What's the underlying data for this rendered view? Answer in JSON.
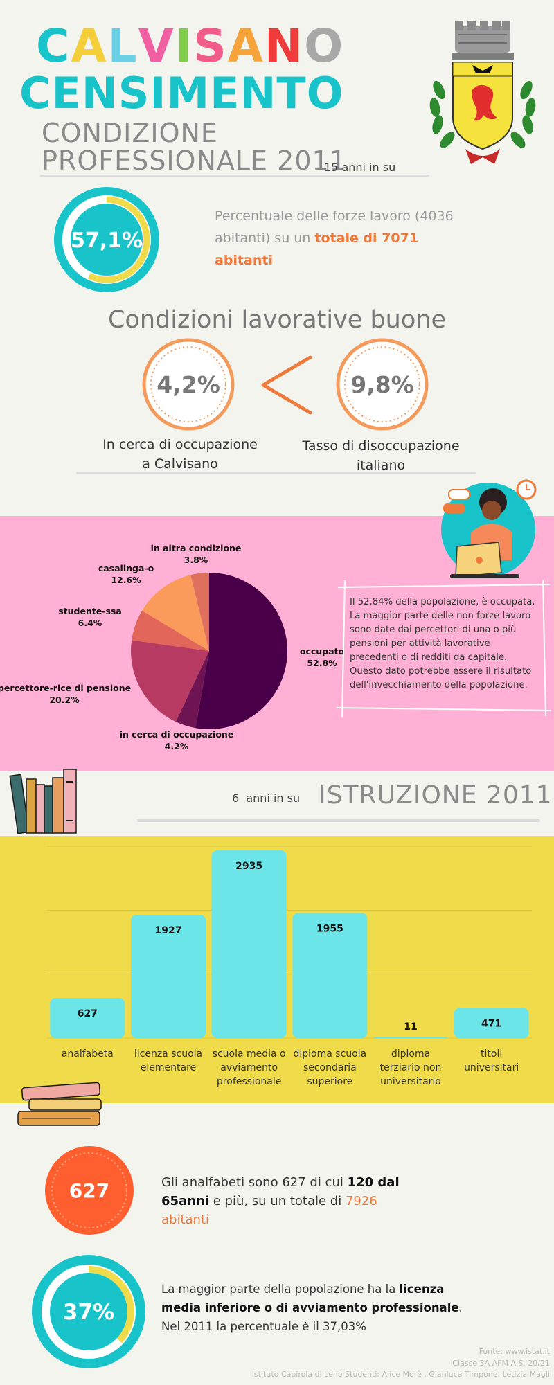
{
  "header": {
    "title_letters": [
      {
        "ch": "C",
        "color": "#18c4c9"
      },
      {
        "ch": "A",
        "color": "#f4cf3a"
      },
      {
        "ch": "L",
        "color": "#6bd0e6"
      },
      {
        "ch": "V",
        "color": "#f15fa3"
      },
      {
        "ch": "I",
        "color": "#7fcd4a"
      },
      {
        "ch": "S",
        "color": "#f25c8a"
      },
      {
        "ch": "A",
        "color": "#f6a33a"
      },
      {
        "ch": "N",
        "color": "#ef3b3b"
      },
      {
        "ch": "O",
        "color": "#a8a8a8"
      }
    ],
    "subtitle": "CENSIMENTO",
    "section_line1": "CONDIZIONE",
    "section_line2": "PROFESSIONALE 2011",
    "age_note": "15 anni in su"
  },
  "workforce": {
    "percent_label": "57,1%",
    "percent_value": 57.1,
    "text_part1": "Percentuale delle forze lavoro (4036 abitanti) su un ",
    "text_highlight": "totale di 7071 abitanti"
  },
  "conditions": {
    "heading": "Condizioni lavorative buone",
    "left_value": "4,2%",
    "left_caption": "In cerca di occupazione a Calvisano",
    "right_value": "9,8%",
    "right_caption": "Tasso di disoccupazione italiano"
  },
  "chart_data": [
    {
      "type": "pie",
      "slices": [
        {
          "label": "occupato",
          "value": 52.8,
          "pct_label": "52.8%",
          "color": "#4a0048"
        },
        {
          "label": "in cerca di occupazione",
          "value": 4.2,
          "pct_label": "4.2%",
          "color": "#6e1452"
        },
        {
          "label": "percettore-rice di pensione",
          "value": 20.2,
          "pct_label": "20.2%",
          "color": "#b73a62"
        },
        {
          "label": "studente-ssa",
          "value": 6.4,
          "pct_label": "6.4%",
          "color": "#e2665a"
        },
        {
          "label": "casalinga-o",
          "value": 12.6,
          "pct_label": "12.6%",
          "color": "#fb9b5b"
        },
        {
          "label": "in altra condizione",
          "value": 3.8,
          "pct_label": "3.8%",
          "color": "#e0705e"
        }
      ]
    },
    {
      "type": "bar",
      "categories": [
        "analfabeta",
        "licenza scuola elementare",
        "scuola media o avviamento professionale",
        "diploma scuola secondaria superiore",
        "diploma terziario non universitario",
        "titoli universitari"
      ],
      "values": [
        627,
        1927,
        2935,
        1955,
        11,
        471
      ],
      "ylim": [
        0,
        3000
      ],
      "grid": true,
      "color": "#6ce5e8"
    }
  ],
  "pie_note": "Il 52,84% della popolazione, è occupata. La maggior parte delle non forze lavoro sono date dai percettori di una o più pensioni per attività lavorative precedenti o di redditi da capitale. Questo dato potrebbe essere il risultato dell'invecchiamento della popolazione.",
  "education": {
    "age_note": "6  anni in su",
    "heading": "ISTRUZIONE 2011"
  },
  "illiterate": {
    "value": "627",
    "text_part1": "Gli analfabeti sono 627 di cui ",
    "text_bold": "120 dai 65anni",
    "text_part2": " e più, su un totale di ",
    "text_highlight": "7926 abitanti"
  },
  "middle_school": {
    "percent_label": "37%",
    "percent_value": 37,
    "text_part1": "La maggior parte della popolazione ha la ",
    "text_bold": "licenza media inferiore o di avviamento professionale",
    "text_part2": ". Nel 2011 la percentuale è il 37,03%"
  },
  "footer": {
    "line1": "Fonte: www.istat.it",
    "line2": "Classe 3A AFM A.S. 20/21",
    "line3": "Istituto Capirola di Leno Studenti: Alice Morè , Gianluca Timpone, Letizia Magli"
  },
  "colors": {
    "teal": "#18c4c9",
    "yellow": "#f0dc4a",
    "pink": "#ffb0d4",
    "orange": "#f07a3a",
    "coral": "#ff5e2e"
  }
}
